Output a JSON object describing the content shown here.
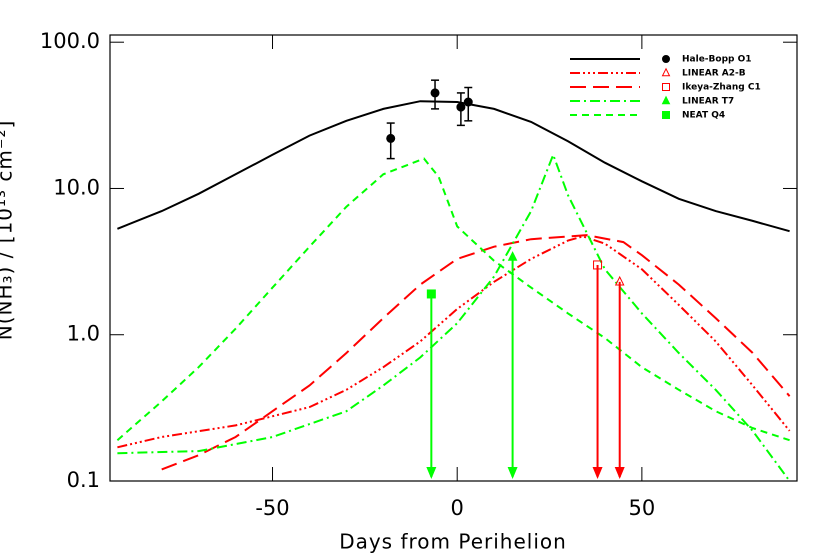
{
  "chart_data": {
    "type": "line",
    "xlabel": "Days from Perihelion",
    "ylabel": "N(NH₃) / [10¹³ cm⁻²]",
    "xlim": [
      -94,
      92
    ],
    "ylim": [
      0.1,
      112
    ],
    "log_y": true,
    "xticks": [
      -50,
      0,
      50
    ],
    "yticks": [
      0.1,
      {
        "value": 1,
        "label": "1.0"
      },
      {
        "value": 10,
        "label": "10.0"
      },
      {
        "value": 100,
        "label": "100.0"
      }
    ],
    "legend": "upper right",
    "series": [
      {
        "name": "Hale-Bopp O1",
        "color": "#000000",
        "line": "solid",
        "marker": "circle",
        "x": [
          -92,
          -80,
          -70,
          -60,
          -50,
          -40,
          -30,
          -20,
          -10,
          0,
          10,
          20,
          30,
          40,
          50,
          60,
          70,
          80,
          90
        ],
        "values": [
          5.3,
          7,
          9.2,
          12.5,
          17,
          23,
          29,
          35,
          39.5,
          39,
          35,
          28.5,
          21,
          15,
          11.2,
          8.5,
          7,
          6,
          5.1
        ],
        "points": {
          "x": [
            -18,
            -6,
            1,
            3
          ],
          "values": [
            22,
            45,
            36,
            39
          ],
          "errors": [
            6,
            10,
            9,
            10
          ],
          "upper_limit": false
        }
      },
      {
        "name": "LINEAR A2-B",
        "color": "#ff0000",
        "line": "dash-dot-dot-dot",
        "marker": "triangle-open",
        "x": [
          -92,
          -80,
          -60,
          -40,
          -30,
          -20,
          -10,
          0,
          10,
          20,
          30,
          34,
          40,
          50,
          60,
          70,
          80,
          90
        ],
        "values": [
          0.17,
          0.2,
          0.24,
          0.32,
          0.42,
          0.6,
          0.9,
          1.5,
          2.3,
          3.3,
          4.4,
          4.7,
          4.2,
          2.8,
          1.6,
          0.9,
          0.45,
          0.22
        ],
        "points": {
          "x": [
            44
          ],
          "values": [
            2.3
          ],
          "upper_limit": true
        }
      },
      {
        "name": "Ikeya-Zhang C1",
        "color": "#ff0000",
        "line": "dash",
        "marker": "square-open",
        "x": [
          -80,
          -70,
          -60,
          -50,
          -40,
          -30,
          -20,
          -10,
          0,
          10,
          20,
          35,
          45,
          50,
          60,
          70,
          80,
          90
        ],
        "values": [
          0.12,
          0.15,
          0.2,
          0.3,
          0.45,
          0.75,
          1.3,
          2.2,
          3.3,
          4.0,
          4.5,
          4.8,
          4.3,
          3.5,
          2.2,
          1.3,
          0.75,
          0.38
        ],
        "points": {
          "x": [
            38
          ],
          "values": [
            3.0
          ],
          "upper_limit": true
        }
      },
      {
        "name": "LINEAR T7",
        "color": "#00ff00",
        "line": "dash-dot",
        "marker": "triangle",
        "x": [
          -92,
          -70,
          -50,
          -30,
          -20,
          -10,
          0,
          10,
          20,
          26,
          30,
          40,
          50,
          60,
          70,
          80,
          90
        ],
        "values": [
          0.155,
          0.16,
          0.2,
          0.3,
          0.45,
          0.7,
          1.2,
          2.5,
          7,
          17,
          9,
          2.8,
          1.4,
          0.75,
          0.42,
          0.22,
          0.1
        ],
        "points": {
          "x": [
            15
          ],
          "values": [
            3.4
          ],
          "upper_limit": true
        }
      },
      {
        "name": "NEAT Q4",
        "color": "#00ff00",
        "line": "short-dash",
        "marker": "square",
        "x": [
          -92,
          -80,
          -70,
          -60,
          -50,
          -40,
          -30,
          -20,
          -9,
          -5,
          0,
          10,
          20,
          30,
          40,
          50,
          60,
          70,
          80,
          90
        ],
        "values": [
          0.19,
          0.35,
          0.6,
          1.1,
          2.1,
          4,
          7.5,
          12.5,
          16,
          12,
          5.5,
          3.2,
          2.1,
          1.4,
          0.95,
          0.6,
          0.42,
          0.3,
          0.23,
          0.19
        ],
        "points": {
          "x": [
            -7
          ],
          "values": [
            1.9
          ],
          "upper_limit": true
        }
      }
    ]
  }
}
